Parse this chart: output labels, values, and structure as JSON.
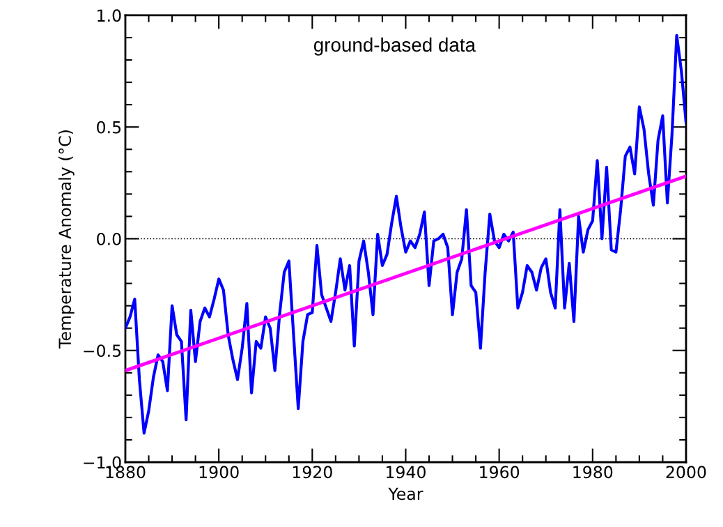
{
  "chart_data": {
    "type": "line",
    "xlabel": "Year",
    "ylabel": "Temperature Anomaly (°C)",
    "annotations": [
      "ground-based data"
    ],
    "xlim": [
      1880,
      2000
    ],
    "xticks": [
      1880,
      1900,
      1920,
      1940,
      1960,
      1980,
      2000
    ],
    "ylim": [
      -1.0,
      1.0
    ],
    "yticks": [
      {
        "value": -1.0,
        "label": "−1.0"
      },
      {
        "value": -0.5,
        "label": "−0.5"
      },
      {
        "value": 0.0,
        "label": "0.0"
      },
      {
        "value": 0.5,
        "label": "0.5"
      },
      {
        "value": 1.0,
        "label": "1.0"
      }
    ],
    "grid": false,
    "legend": false,
    "marker": "none",
    "line_style": "solid",
    "ref_lines": [
      {
        "axis": "y",
        "value": 0.0,
        "color": "#000000",
        "line_style": "dotted"
      }
    ],
    "series": [
      {
        "color": "#0000ff",
        "x": [
          1880,
          1881,
          1882,
          1883,
          1884,
          1885,
          1886,
          1887,
          1888,
          1889,
          1890,
          1891,
          1892,
          1893,
          1894,
          1895,
          1896,
          1897,
          1898,
          1899,
          1900,
          1901,
          1902,
          1903,
          1904,
          1905,
          1906,
          1907,
          1908,
          1909,
          1910,
          1911,
          1912,
          1913,
          1914,
          1915,
          1916,
          1917,
          1918,
          1919,
          1920,
          1921,
          1922,
          1923,
          1924,
          1925,
          1926,
          1927,
          1928,
          1929,
          1930,
          1931,
          1932,
          1933,
          1934,
          1935,
          1936,
          1937,
          1938,
          1939,
          1940,
          1941,
          1942,
          1943,
          1944,
          1945,
          1946,
          1947,
          1948,
          1949,
          1950,
          1951,
          1952,
          1953,
          1954,
          1955,
          1956,
          1957,
          1958,
          1959,
          1960,
          1961,
          1962,
          1963,
          1964,
          1965,
          1966,
          1967,
          1968,
          1969,
          1970,
          1971,
          1972,
          1973,
          1974,
          1975,
          1976,
          1977,
          1978,
          1979,
          1980,
          1981,
          1982,
          1983,
          1984,
          1985,
          1986,
          1987,
          1988,
          1989,
          1990,
          1991,
          1992,
          1993,
          1994,
          1995,
          1996,
          1997,
          1998,
          1999,
          2000
        ],
        "values": [
          -0.4,
          -0.35,
          -0.27,
          -0.63,
          -0.87,
          -0.77,
          -0.62,
          -0.52,
          -0.55,
          -0.68,
          -0.3,
          -0.43,
          -0.46,
          -0.81,
          -0.32,
          -0.55,
          -0.37,
          -0.31,
          -0.35,
          -0.27,
          -0.18,
          -0.23,
          -0.43,
          -0.54,
          -0.63,
          -0.49,
          -0.29,
          -0.69,
          -0.46,
          -0.49,
          -0.35,
          -0.4,
          -0.59,
          -0.34,
          -0.15,
          -0.1,
          -0.43,
          -0.76,
          -0.46,
          -0.34,
          -0.33,
          -0.03,
          -0.25,
          -0.31,
          -0.37,
          -0.24,
          -0.09,
          -0.23,
          -0.12,
          -0.48,
          -0.1,
          -0.01,
          -0.15,
          -0.34,
          0.02,
          -0.12,
          -0.07,
          0.07,
          0.19,
          0.05,
          -0.06,
          -0.01,
          -0.04,
          0.02,
          0.12,
          -0.21,
          -0.01,
          0.0,
          0.02,
          -0.04,
          -0.34,
          -0.15,
          -0.09,
          0.13,
          -0.21,
          -0.24,
          -0.49,
          -0.15,
          0.11,
          -0.01,
          -0.04,
          0.02,
          -0.01,
          0.03,
          -0.31,
          -0.24,
          -0.12,
          -0.15,
          -0.23,
          -0.13,
          -0.09,
          -0.24,
          -0.31,
          0.13,
          -0.31,
          -0.11,
          -0.37,
          0.1,
          -0.06,
          0.04,
          0.08,
          0.35,
          0.0,
          0.32,
          -0.05,
          -0.06,
          0.13,
          0.37,
          0.41,
          0.29,
          0.59,
          0.49,
          0.29,
          0.15,
          0.44,
          0.55,
          0.16,
          0.47,
          0.91,
          0.75,
          0.52
        ]
      },
      {
        "color": "#ff00ff",
        "x": [
          1880,
          2000
        ],
        "values": [
          -0.59,
          0.28
        ]
      }
    ]
  }
}
